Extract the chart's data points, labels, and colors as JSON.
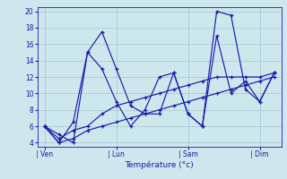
{
  "background_color": "#cce8ec",
  "grid_color": "#99bbcc",
  "line_color": "#1a1aaa",
  "xlabel": "Température (°c)",
  "ylim": [
    3.5,
    20.5
  ],
  "yticks": [
    4,
    6,
    8,
    10,
    12,
    14,
    16,
    18,
    20
  ],
  "xtick_labels": [
    "| Ven",
    "| Lun",
    "| Sam",
    "| Dim"
  ],
  "xtick_positions": [
    0,
    5,
    10,
    15
  ],
  "n_points": 17,
  "series": [
    [
      6.0,
      5.0,
      4.0,
      15.0,
      17.5,
      13.0,
      8.5,
      7.5,
      7.5,
      12.5,
      7.5,
      6.0,
      20.0,
      19.5,
      10.5,
      9.0,
      12.5
    ],
    [
      6.0,
      4.0,
      6.5,
      15.0,
      13.0,
      9.0,
      6.0,
      8.0,
      12.0,
      12.5,
      7.5,
      6.0,
      17.0,
      10.0,
      11.5,
      9.0,
      12.5
    ],
    [
      6.0,
      4.5,
      5.5,
      6.0,
      7.5,
      8.5,
      9.0,
      9.5,
      10.0,
      10.5,
      11.0,
      11.5,
      12.0,
      12.0,
      12.0,
      12.0,
      12.5
    ],
    [
      6.0,
      4.0,
      4.5,
      5.5,
      6.0,
      6.5,
      7.0,
      7.5,
      8.0,
      8.5,
      9.0,
      9.5,
      10.0,
      10.5,
      11.0,
      11.5,
      12.0
    ]
  ]
}
